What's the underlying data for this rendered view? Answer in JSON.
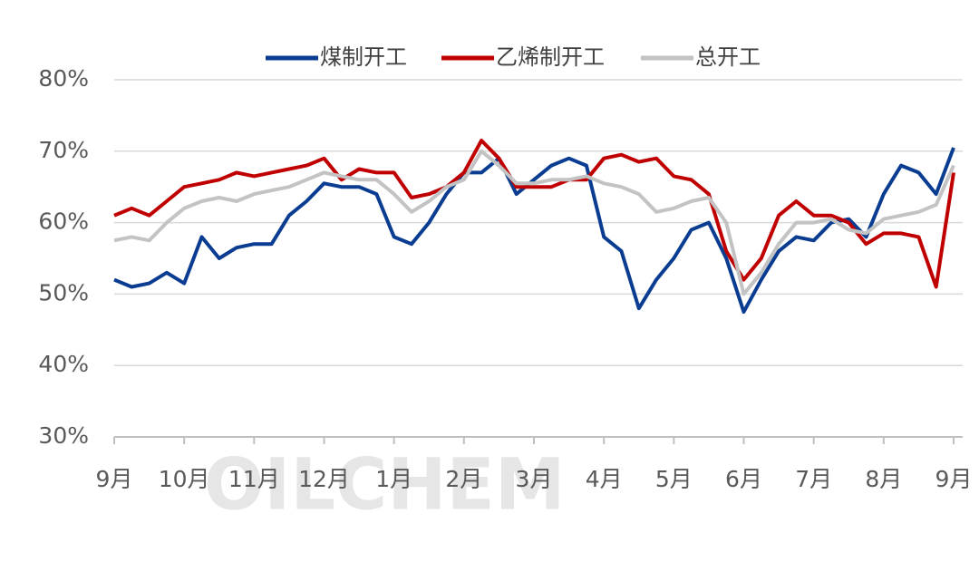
{
  "chart_data": {
    "type": "line",
    "watermark": "OILCHEM",
    "categories": [
      "9月",
      null,
      null,
      null,
      "10月",
      null,
      null,
      null,
      "11月",
      null,
      null,
      null,
      "12月",
      null,
      null,
      null,
      "1月",
      null,
      null,
      null,
      "2月",
      null,
      null,
      null,
      "3月",
      null,
      null,
      null,
      "4月",
      null,
      null,
      null,
      "5月",
      null,
      null,
      null,
      "6月",
      null,
      null,
      null,
      "7月",
      null,
      null,
      null,
      "8月",
      null,
      null,
      null,
      "9月"
    ],
    "series": [
      {
        "name": "煤制开工",
        "color": "#0a3d91",
        "values": [
          52,
          51,
          51.5,
          53,
          51.5,
          58,
          55,
          56.5,
          57,
          57,
          61,
          63,
          65.5,
          65,
          65,
          64,
          58,
          57,
          60,
          64,
          67,
          67,
          69,
          64,
          66,
          68,
          69,
          68,
          58,
          56,
          48,
          52,
          55,
          59,
          60,
          55,
          47.5,
          52,
          56,
          58,
          57.5,
          60,
          60.5,
          58,
          64,
          68,
          67,
          64,
          70.5
        ]
      },
      {
        "name": "乙烯制开工",
        "color": "#c00000",
        "values": [
          61,
          62,
          61,
          63,
          65,
          65.5,
          66,
          67,
          66.5,
          67,
          67.5,
          68,
          69,
          66,
          67.5,
          67,
          67,
          63.5,
          64,
          65,
          67,
          71.5,
          69,
          65,
          65,
          65,
          66,
          66,
          69,
          69.5,
          68.5,
          69,
          66.5,
          66,
          64,
          56,
          52,
          55,
          61,
          63,
          61,
          61,
          60,
          57,
          58.5,
          58.5,
          58,
          51,
          67
        ]
      },
      {
        "name": "总开工",
        "color": "#c3c3c3",
        "values": [
          57.5,
          58,
          57.5,
          60,
          62,
          63,
          63.5,
          63,
          64,
          64.5,
          65,
          66,
          67,
          66.5,
          66,
          66,
          64,
          61.5,
          63,
          65,
          66,
          70,
          68,
          65.5,
          65.5,
          66,
          66,
          66.5,
          65.5,
          65,
          64,
          61.5,
          62,
          63,
          63.5,
          60,
          50,
          53,
          57,
          60,
          60,
          60.5,
          59,
          58.5,
          60.5,
          61,
          61.5,
          62.5,
          68
        ]
      }
    ],
    "ylim": [
      30,
      80
    ],
    "yticks": [
      {
        "value": 30,
        "label": "30%"
      },
      {
        "value": 40,
        "label": "40%"
      },
      {
        "value": 50,
        "label": "50%"
      },
      {
        "value": 60,
        "label": "60%"
      },
      {
        "value": 70,
        "label": "70%"
      },
      {
        "value": 80,
        "label": "80%"
      }
    ],
    "grid": true
  }
}
